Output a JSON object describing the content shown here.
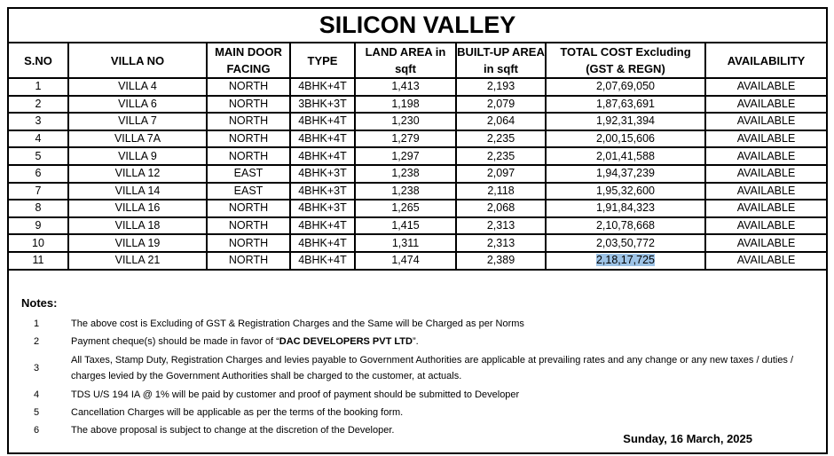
{
  "title": "SILICON VALLEY",
  "headers": [
    "S.NO",
    "VILLA NO",
    "MAIN DOOR FACING",
    "TYPE",
    "LAND AREA in sqft",
    "BUILT-UP AREA in sqft",
    "TOTAL COST  Excluding (GST & REGN)",
    "AVAILABILITY"
  ],
  "rows": [
    [
      "1",
      "VILLA 4",
      "NORTH",
      "4BHK+4T",
      "1,413",
      "2,193",
      "2,07,69,050",
      "AVAILABLE"
    ],
    [
      "2",
      "VILLA 6",
      "NORTH",
      "3BHK+3T",
      "1,198",
      "2,079",
      "1,87,63,691",
      "AVAILABLE"
    ],
    [
      "3",
      "VILLA 7",
      "NORTH",
      "4BHK+4T",
      "1,230",
      "2,064",
      "1,92,31,394",
      "AVAILABLE"
    ],
    [
      "4",
      "VILLA 7A",
      "NORTH",
      "4BHK+4T",
      "1,279",
      "2,235",
      "2,00,15,606",
      "AVAILABLE"
    ],
    [
      "5",
      "VILLA 9",
      "NORTH",
      "4BHK+4T",
      "1,297",
      "2,235",
      "2,01,41,588",
      "AVAILABLE"
    ],
    [
      "6",
      "VILLA 12",
      "EAST",
      "4BHK+3T",
      "1,238",
      "2,097",
      "1,94,37,239",
      "AVAILABLE"
    ],
    [
      "7",
      "VILLA 14",
      "EAST",
      "4BHK+3T",
      "1,238",
      "2,118",
      "1,95,32,600",
      "AVAILABLE"
    ],
    [
      "8",
      "VILLA 16",
      "NORTH",
      "4BHK+3T",
      "1,265",
      "2,068",
      "1,91,84,323",
      "AVAILABLE"
    ],
    [
      "9",
      "VILLA 18",
      "NORTH",
      "4BHK+4T",
      "1,415",
      "2,313",
      "2,10,78,668",
      "AVAILABLE"
    ],
    [
      "10",
      "VILLA 19",
      "NORTH",
      "4BHK+4T",
      "1,311",
      "2,313",
      "2,03,50,772",
      "AVAILABLE"
    ],
    [
      "11",
      "VILLA 21",
      "NORTH",
      "4BHK+4T",
      "1,474",
      "2,389",
      "2,18,17,725",
      "AVAILABLE"
    ]
  ],
  "highlight_color": "#9dc3e6",
  "notes": {
    "heading": "Notes:",
    "items": [
      {
        "num": "1",
        "pre": "The above cost is Excluding of GST & Registration Charges and the Same will be Charged as per Norms",
        "bold": "",
        "post": ""
      },
      {
        "num": "2",
        "pre": "Payment cheque(s) should be made in favor of “",
        "bold": "DAC DEVELOPERS PVT LTD",
        "post": "”."
      },
      {
        "num": "3",
        "pre": "All Taxes, Stamp Duty, Registration Charges and levies payable to Government Authorities are applicable at prevailing rates and any change or any new taxes / duties / charges levied by the Government Authorities shall be charged to the customer, at actuals.",
        "bold": "",
        "post": ""
      },
      {
        "num": "4",
        "pre": "TDS U/S 194 IA @ 1% will be paid by customer and proof of payment should be submitted to Developer",
        "bold": "",
        "post": ""
      },
      {
        "num": "5",
        "pre": "Cancellation Charges will be applicable as per the terms of the booking form.",
        "bold": "",
        "post": ""
      },
      {
        "num": "6",
        "pre": "The above proposal is subject to change at the discretion of the Developer.",
        "bold": "",
        "post": ""
      }
    ]
  },
  "date": "Sunday, 16 March, 2025"
}
